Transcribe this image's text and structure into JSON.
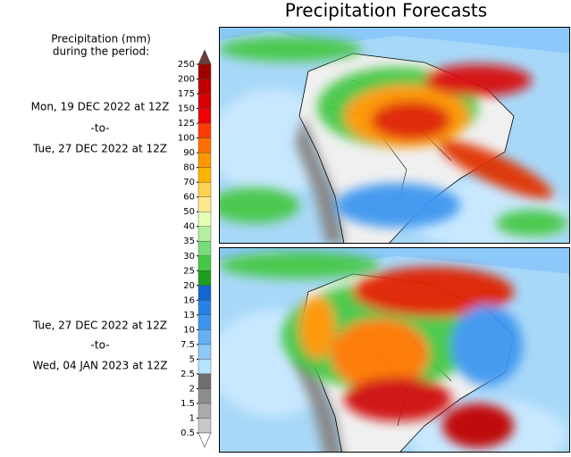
{
  "title": "Precipitation Forecasts",
  "legend_title": [
    "Precipitation (mm)",
    "during the period:"
  ],
  "periods": [
    {
      "start": "Mon, 19 DEC 2022 at 12Z",
      "separator": "-to-",
      "end": "Tue, 27 DEC 2022 at 12Z"
    },
    {
      "start": "Tue, 27 DEC 2022 at 12Z",
      "separator": "-to-",
      "end": "Wed, 04 JAN 2023 at 12Z"
    }
  ],
  "colorbar": {
    "ticks": [
      250,
      200,
      175,
      150,
      125,
      100,
      90,
      80,
      70,
      60,
      50,
      40,
      35,
      30,
      25,
      20,
      16,
      13,
      10,
      7.5,
      5,
      2.5,
      2,
      1.5,
      1,
      0.5
    ],
    "colors": [
      "#a00000",
      "#c00000",
      "#d80000",
      "#f00000",
      "#ff3c00",
      "#ff6e00",
      "#ff9600",
      "#ffb400",
      "#ffd250",
      "#ffe88c",
      "#e6ffb4",
      "#b4f0a0",
      "#78dc78",
      "#46c846",
      "#1e9e1e",
      "#1464d2",
      "#2882e6",
      "#3c96f0",
      "#64b0f5",
      "#8cc8fa",
      "#b4e4ff",
      "#6e6e6e",
      "#8c8c8c",
      "#aaaaaa",
      "#c8c8c8"
    ],
    "over_color": "#6b3a3a",
    "under_color": "#ffffff"
  }
}
